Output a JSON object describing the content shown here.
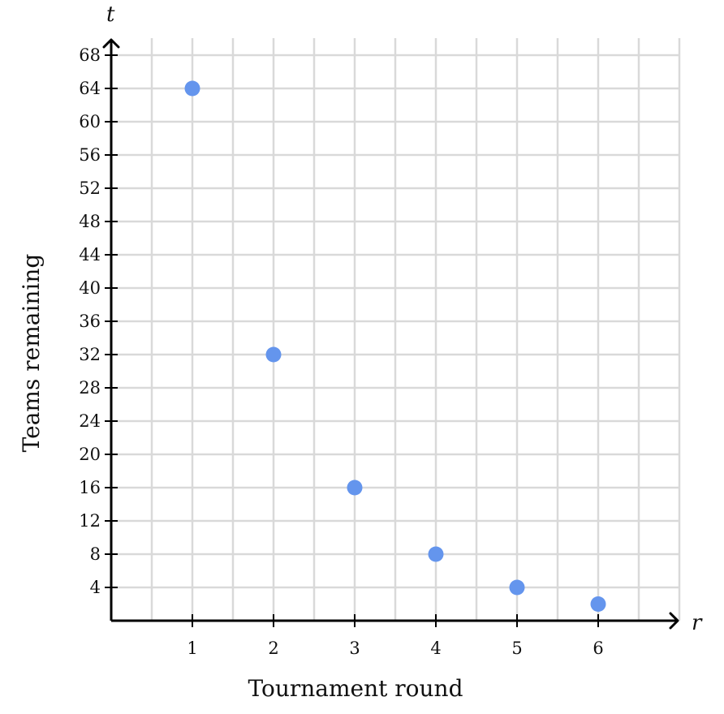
{
  "chart_data": {
    "type": "scatter",
    "xlabel": "Tournament round",
    "ylabel": "Teams remaining",
    "x_var": "r",
    "y_var": "t",
    "x": [
      1,
      2,
      3,
      4,
      5,
      6
    ],
    "y": [
      64,
      32,
      16,
      8,
      4,
      2
    ],
    "xlim": [
      0,
      7
    ],
    "ylim": [
      0,
      68.5
    ],
    "x_ticks": [
      1,
      2,
      3,
      4,
      5,
      6
    ],
    "y_ticks": [
      4,
      8,
      12,
      16,
      20,
      24,
      28,
      32,
      36,
      40,
      44,
      48,
      52,
      56,
      60,
      64,
      68
    ],
    "x_grid_step": 0.5,
    "y_grid_step": 4,
    "grid": true,
    "point_color": "#6495ED",
    "grid_color": "#d9d9d9",
    "axis_color": "#000000"
  }
}
